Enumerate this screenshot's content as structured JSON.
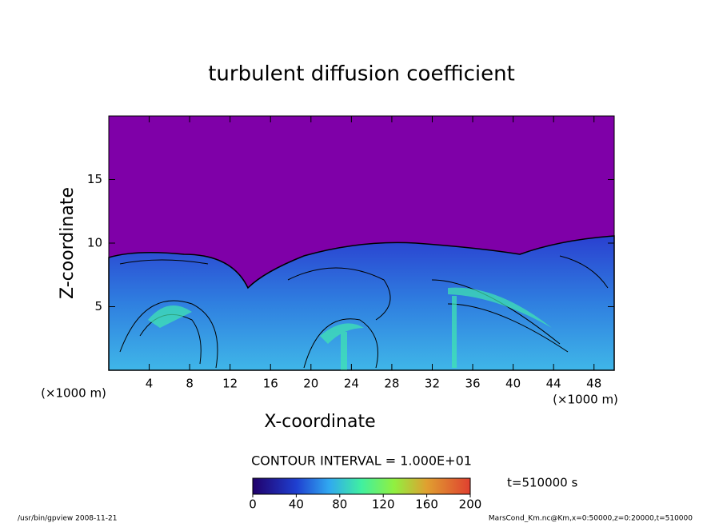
{
  "chart_data": {
    "type": "contour",
    "title": "turbulent diffusion coefficient",
    "x_label": "X-coordinate",
    "y_label": "Z-coordinate",
    "x_unit": "(×1000 m)",
    "y_unit": "(×1000 m)",
    "xlim": [
      0,
      50
    ],
    "xticks": [
      4,
      8,
      12,
      16,
      20,
      24,
      28,
      32,
      36,
      40,
      44,
      48
    ],
    "ylim": [
      0,
      20
    ],
    "yticks": [
      5,
      10,
      15
    ],
    "contour_interval": "CONTOUR INTERVAL = 1.000E+01",
    "time_label": "t=510000 s",
    "colorbar": {
      "lim": [
        0,
        200
      ],
      "ticks": [
        0,
        40,
        80,
        120,
        160,
        200
      ]
    },
    "footer_left": "/usr/bin/gpview  2008-11-21",
    "footer_right": "MarsCond_Km.nc@Km,x=0:50000,z=0:20000,t=510000"
  }
}
